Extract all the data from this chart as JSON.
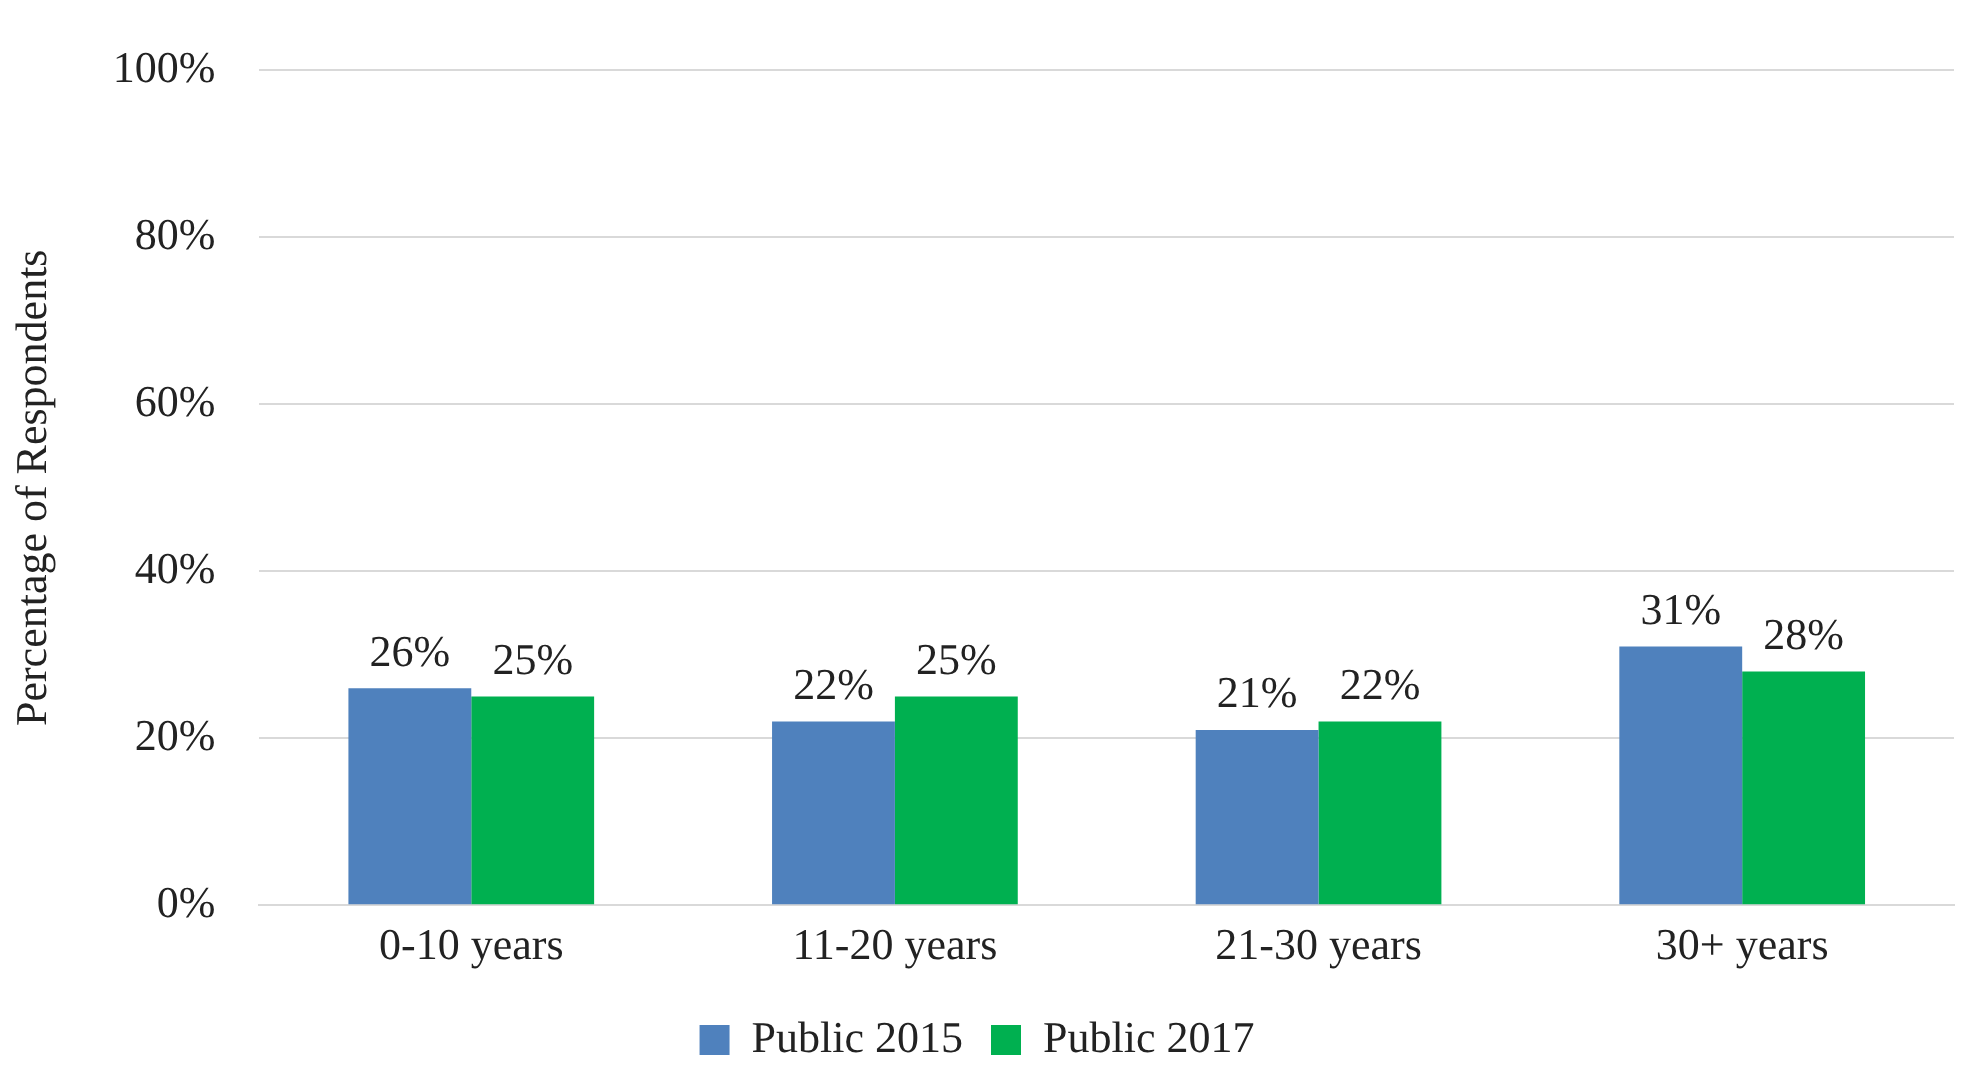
{
  "chart_data": {
    "type": "bar",
    "ylabel": "Percentage of Respondents",
    "categories": [
      "0-10 years",
      "11-20 years",
      "21-30 years",
      "30+ years"
    ],
    "series": [
      {
        "name": "Public 2015",
        "color": "#4f81bd",
        "values": [
          26,
          22,
          21,
          31
        ],
        "value_labels": [
          "26%",
          "22%",
          "21%",
          "31%"
        ]
      },
      {
        "name": "Public 2017",
        "color": "#00b050",
        "values": [
          25,
          25,
          22,
          28
        ],
        "value_labels": [
          "25%",
          "25%",
          "22%",
          "28%"
        ]
      }
    ],
    "ylim": [
      0,
      100
    ],
    "yticks": [
      {
        "value": 0,
        "label": "0%"
      },
      {
        "value": 20,
        "label": "20%"
      },
      {
        "value": 40,
        "label": "40%"
      },
      {
        "value": 60,
        "label": "60%"
      },
      {
        "value": 80,
        "label": "80%"
      },
      {
        "value": 100,
        "label": "100%"
      }
    ],
    "grid": "y",
    "legend": "bottom"
  }
}
